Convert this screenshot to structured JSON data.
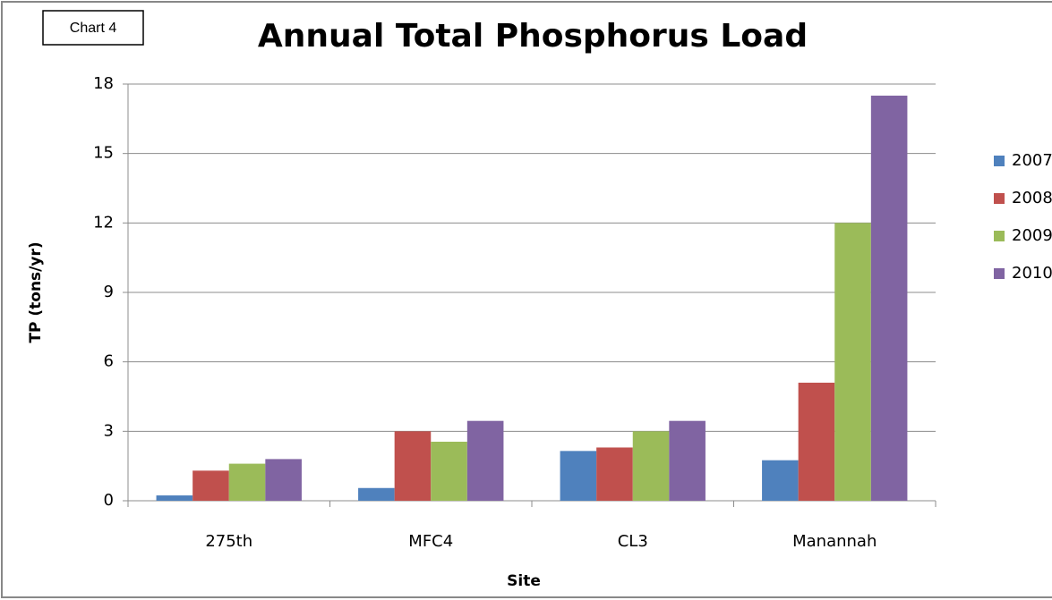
{
  "chart_data": {
    "type": "bar",
    "label": "Chart 4",
    "title": "Annual Total Phosphorus Load",
    "x_label": "Site",
    "y_label": "TP (tons/yr)",
    "categories": [
      "275th",
      "MFC4",
      "CL3",
      "Manannah"
    ],
    "series": [
      {
        "name": "2007",
        "color": "#4f81bd",
        "values": [
          0.23,
          0.55,
          2.15,
          1.75
        ]
      },
      {
        "name": "2008",
        "color": "#c0504d",
        "values": [
          1.3,
          3.0,
          2.3,
          5.1
        ]
      },
      {
        "name": "2009",
        "color": "#9bbb59",
        "values": [
          1.6,
          2.55,
          3.0,
          12.0
        ]
      },
      {
        "name": "2010",
        "color": "#8064a2",
        "values": [
          1.8,
          3.45,
          3.45,
          17.5
        ]
      }
    ],
    "ylim": [
      0,
      18
    ],
    "yticks": [
      0,
      3,
      6,
      9,
      12,
      15,
      18
    ],
    "grid": true,
    "legend": "right"
  }
}
